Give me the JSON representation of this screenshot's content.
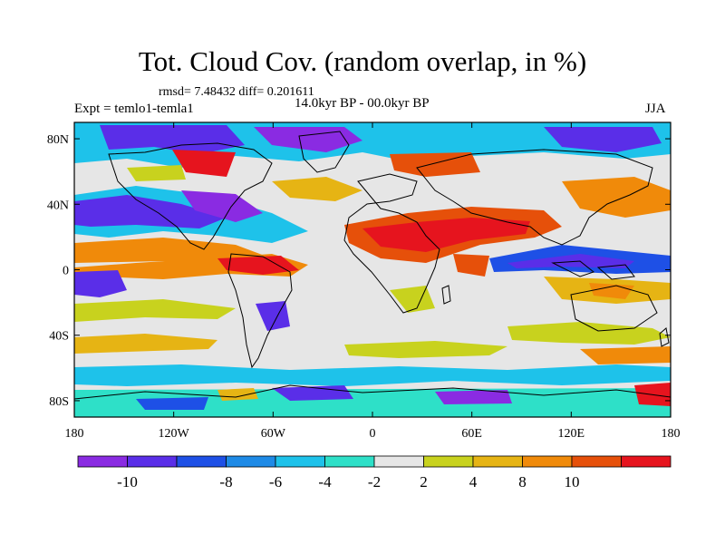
{
  "title": "Tot. Cloud Cov. (random overlap, in %)",
  "stats": "rmsd= 7.48432 diff= 0.201611",
  "experiment": "Expt = temlo1-temla1",
  "period": "14.0kyr BP - 00.0kyr BP",
  "season": "JJA",
  "map": {
    "lon_range": [
      -180,
      180
    ],
    "lat_range": [
      -90,
      90
    ],
    "lat_ticks": [
      {
        "value": 80,
        "label": "80N"
      },
      {
        "value": 40,
        "label": "40N"
      },
      {
        "value": 0,
        "label": "0"
      },
      {
        "value": -40,
        "label": "40S"
      },
      {
        "value": -80,
        "label": "80S"
      }
    ],
    "lon_ticks": [
      {
        "value": -180,
        "label": "180"
      },
      {
        "value": -120,
        "label": "120W"
      },
      {
        "value": -60,
        "label": "60W"
      },
      {
        "value": 0,
        "label": "0"
      },
      {
        "value": 60,
        "label": "60E"
      },
      {
        "value": 120,
        "label": "120E"
      },
      {
        "value": 180,
        "label": "180"
      }
    ]
  },
  "colorbar": {
    "colors": [
      "#8a2be2",
      "#5a2ee8",
      "#1e50e6",
      "#1e8ae6",
      "#1ec2ea",
      "#2ee0c8",
      "#e6e6e6",
      "#c8d21e",
      "#e6b414",
      "#f08a0a",
      "#e6500a",
      "#e6141e"
    ],
    "labels": [
      "-10",
      "-8",
      "-6",
      "-4",
      "-2",
      "2",
      "4",
      "8",
      "10"
    ]
  }
}
